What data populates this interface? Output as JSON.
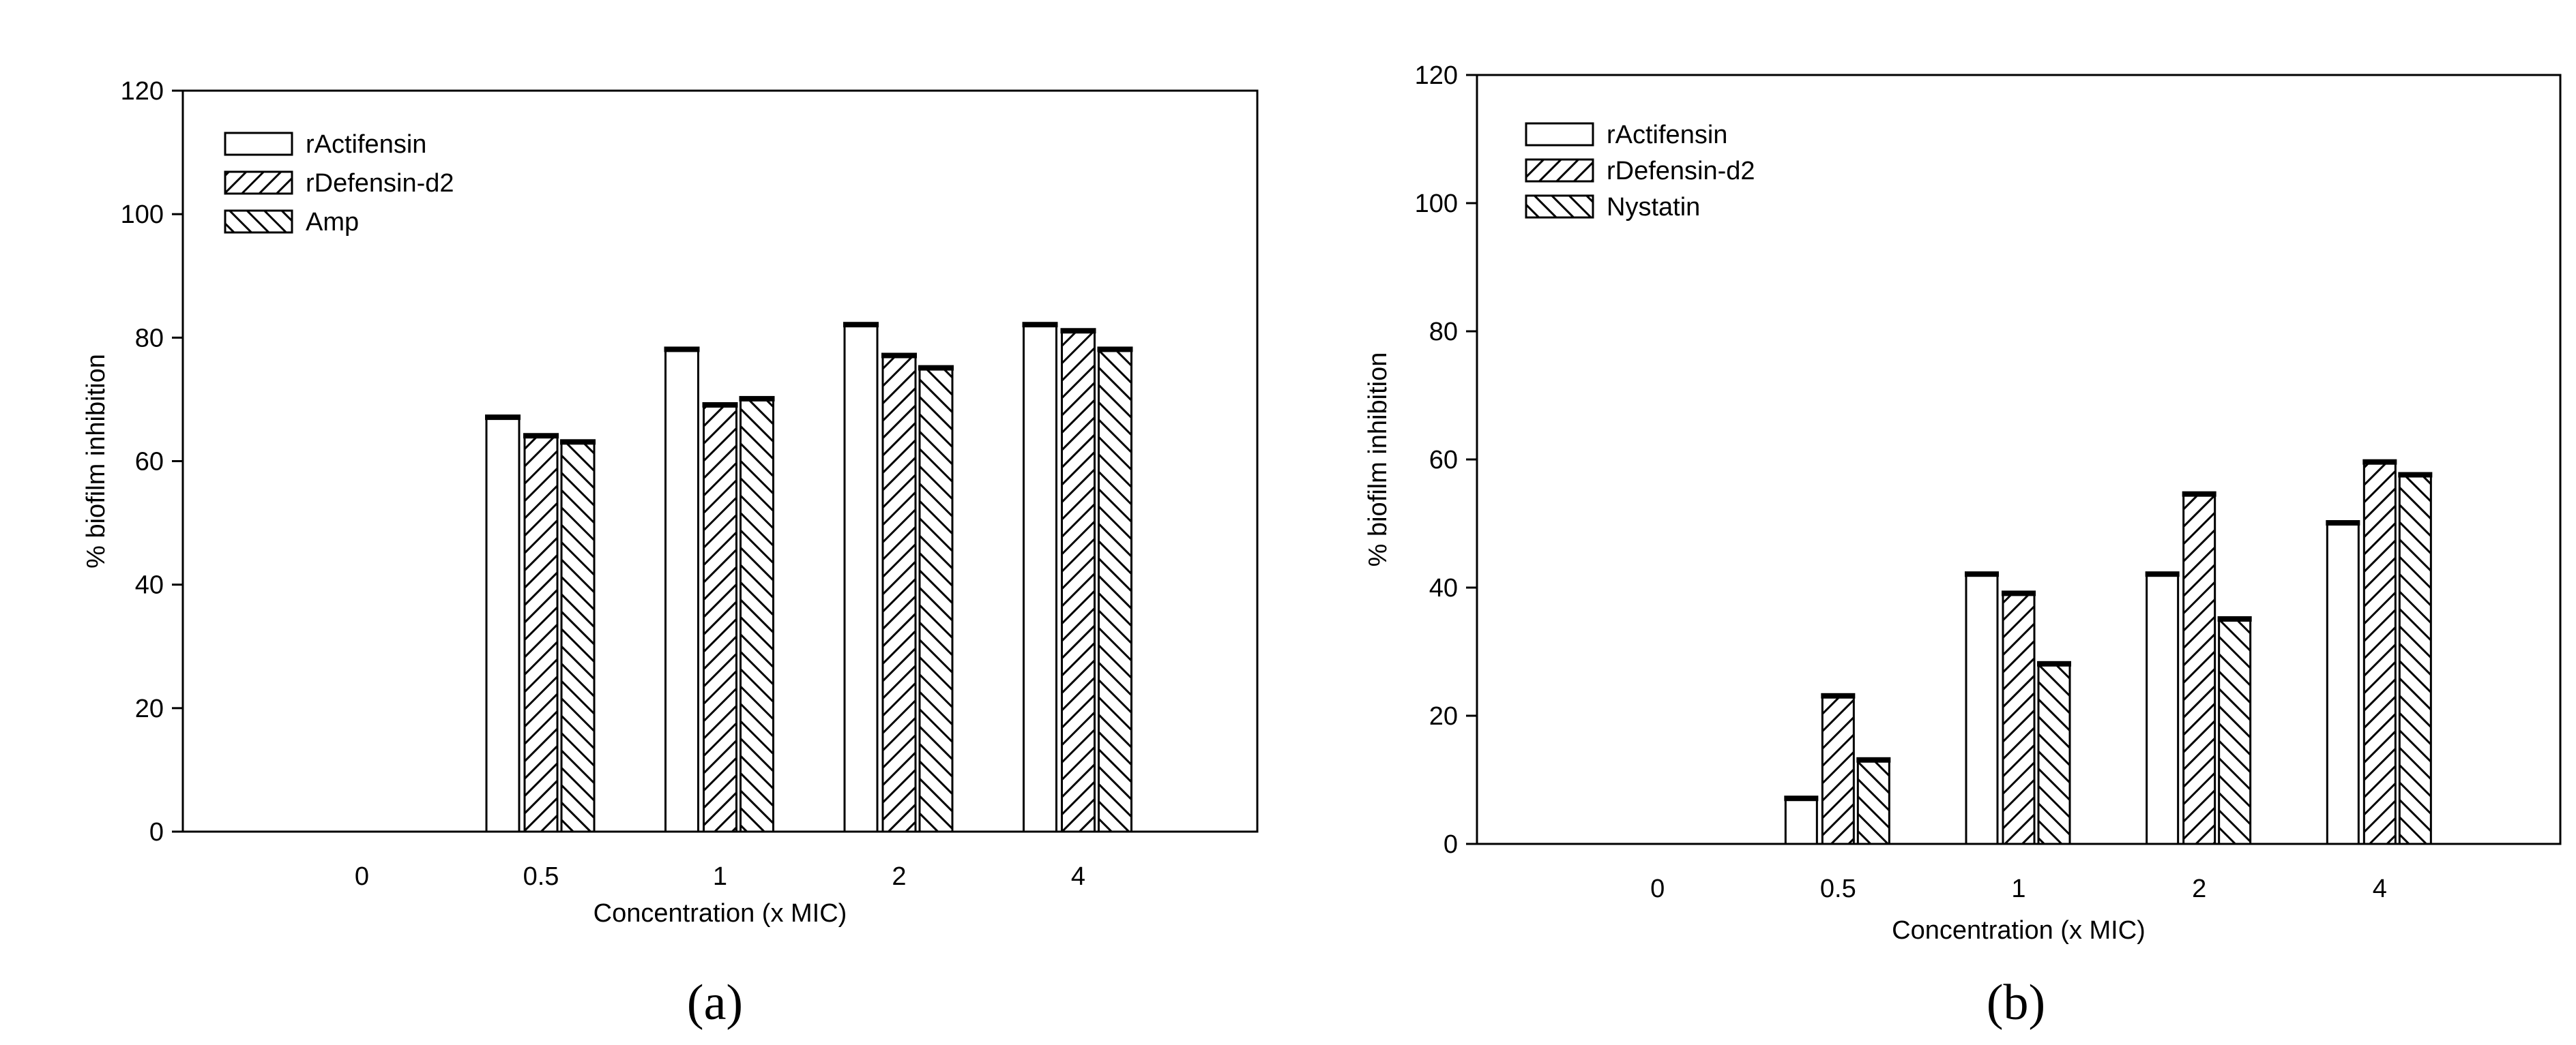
{
  "chart_data": [
    {
      "type": "bar",
      "panel_label": "(a)",
      "xlabel": "Concentration (x MIC)",
      "ylabel": "% biofilm inhibition",
      "ylim": [
        0,
        120
      ],
      "yticks": [
        "0",
        "20",
        "40",
        "60",
        "80",
        "100",
        "120"
      ],
      "categories": [
        "0",
        "0.5",
        "1",
        "2",
        "4"
      ],
      "series": [
        {
          "name": "rActifensin",
          "pattern": "blank",
          "values": [
            0,
            67,
            78,
            82,
            82
          ]
        },
        {
          "name": "rDefensin-d2",
          "pattern": "forward-hatch",
          "values": [
            0,
            64,
            69,
            77,
            81
          ]
        },
        {
          "name": "Amp",
          "pattern": "back-hatch",
          "values": [
            0,
            63,
            70,
            75,
            78
          ]
        }
      ],
      "legend_position": "top-left",
      "grid": false
    },
    {
      "type": "bar",
      "panel_label": "(b)",
      "xlabel": "Concentration (x MIC)",
      "ylabel": "% biofilm inhibition",
      "ylim": [
        0,
        120
      ],
      "yticks": [
        "0",
        "20",
        "40",
        "60",
        "80",
        "100",
        "120"
      ],
      "categories": [
        "0",
        "0.5",
        "1",
        "2",
        "4"
      ],
      "series": [
        {
          "name": "rActifensin",
          "pattern": "blank",
          "values": [
            0,
            7,
            42,
            42,
            50
          ]
        },
        {
          "name": "rDefensin-d2",
          "pattern": "forward-hatch",
          "values": [
            0,
            23,
            39,
            54.5,
            59.5
          ]
        },
        {
          "name": "Nystatin",
          "pattern": "back-hatch",
          "values": [
            0,
            13,
            28,
            35,
            57.5
          ]
        }
      ],
      "legend_position": "top-left",
      "grid": false
    }
  ]
}
